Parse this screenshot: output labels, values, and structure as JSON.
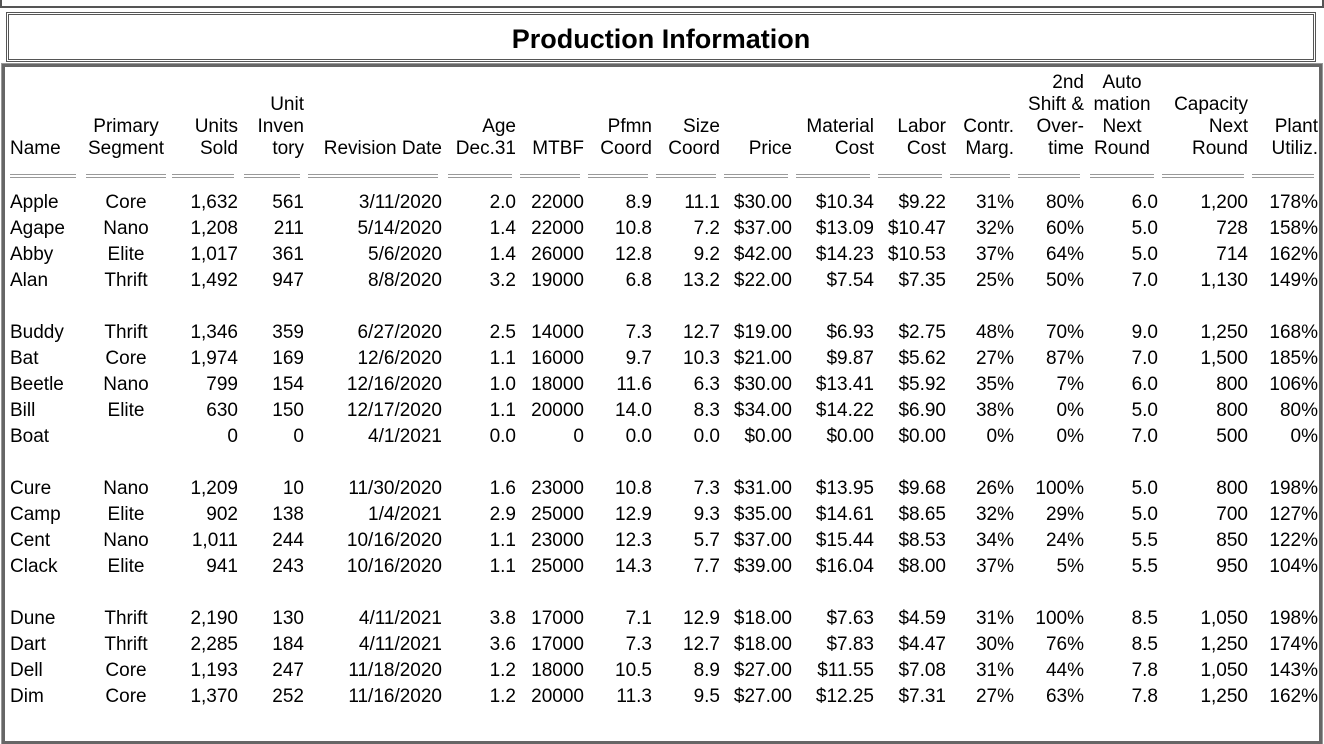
{
  "header": {
    "title": "Production Information"
  },
  "table": {
    "columns": [
      [
        "Name"
      ],
      [
        "Primary",
        "Segment"
      ],
      [
        "Units",
        "Sold"
      ],
      [
        "Unit",
        "Inven",
        "tory"
      ],
      [
        "Revision Date"
      ],
      [
        "Age",
        "Dec.31"
      ],
      [
        "MTBF"
      ],
      [
        "Pfmn",
        "Coord"
      ],
      [
        "Size",
        "Coord"
      ],
      [
        "Price"
      ],
      [
        "Material",
        "Cost"
      ],
      [
        "Labor",
        "Cost"
      ],
      [
        "Contr.",
        "Marg."
      ],
      [
        "2nd",
        "Shift &",
        "Over-",
        "time"
      ],
      [
        "Auto",
        "mation",
        "Next",
        "Round"
      ],
      [
        "Capacity",
        "Next",
        "Round"
      ],
      [
        "Plant",
        "Utiliz."
      ]
    ],
    "groups": [
      [
        [
          "Apple",
          "Core",
          "1,632",
          "561",
          "3/11/2020",
          "2.0",
          "22000",
          "8.9",
          "11.1",
          "$30.00",
          "$10.34",
          "$9.22",
          "31%",
          "80%",
          "6.0",
          "1,200",
          "178%"
        ],
        [
          "Agape",
          "Nano",
          "1,208",
          "211",
          "5/14/2020",
          "1.4",
          "22000",
          "10.8",
          "7.2",
          "$37.00",
          "$13.09",
          "$10.47",
          "32%",
          "60%",
          "5.0",
          "728",
          "158%"
        ],
        [
          "Abby",
          "Elite",
          "1,017",
          "361",
          "5/6/2020",
          "1.4",
          "26000",
          "12.8",
          "9.2",
          "$42.00",
          "$14.23",
          "$10.53",
          "37%",
          "64%",
          "5.0",
          "714",
          "162%"
        ],
        [
          "Alan",
          "Thrift",
          "1,492",
          "947",
          "8/8/2020",
          "3.2",
          "19000",
          "6.8",
          "13.2",
          "$22.00",
          "$7.54",
          "$7.35",
          "25%",
          "50%",
          "7.0",
          "1,130",
          "149%"
        ]
      ],
      [
        [
          "Buddy",
          "Thrift",
          "1,346",
          "359",
          "6/27/2020",
          "2.5",
          "14000",
          "7.3",
          "12.7",
          "$19.00",
          "$6.93",
          "$2.75",
          "48%",
          "70%",
          "9.0",
          "1,250",
          "168%"
        ],
        [
          "Bat",
          "Core",
          "1,974",
          "169",
          "12/6/2020",
          "1.1",
          "16000",
          "9.7",
          "10.3",
          "$21.00",
          "$9.87",
          "$5.62",
          "27%",
          "87%",
          "7.0",
          "1,500",
          "185%"
        ],
        [
          "Beetle",
          "Nano",
          "799",
          "154",
          "12/16/2020",
          "1.0",
          "18000",
          "11.6",
          "6.3",
          "$30.00",
          "$13.41",
          "$5.92",
          "35%",
          "7%",
          "6.0",
          "800",
          "106%"
        ],
        [
          "Bill",
          "Elite",
          "630",
          "150",
          "12/17/2020",
          "1.1",
          "20000",
          "14.0",
          "8.3",
          "$34.00",
          "$14.22",
          "$6.90",
          "38%",
          "0%",
          "5.0",
          "800",
          "80%"
        ],
        [
          "Boat",
          null,
          "0",
          "0",
          "4/1/2021",
          "0.0",
          "0",
          "0.0",
          "0.0",
          "$0.00",
          "$0.00",
          "$0.00",
          "0%",
          "0%",
          "7.0",
          "500",
          "0%"
        ]
      ],
      [
        [
          "Cure",
          "Nano",
          "1,209",
          "10",
          "11/30/2020",
          "1.6",
          "23000",
          "10.8",
          "7.3",
          "$31.00",
          "$13.95",
          "$9.68",
          "26%",
          "100%",
          "5.0",
          "800",
          "198%"
        ],
        [
          "Camp",
          "Elite",
          "902",
          "138",
          "1/4/2021",
          "2.9",
          "25000",
          "12.9",
          "9.3",
          "$35.00",
          "$14.61",
          "$8.65",
          "32%",
          "29%",
          "5.0",
          "700",
          "127%"
        ],
        [
          "Cent",
          "Nano",
          "1,011",
          "244",
          "10/16/2020",
          "1.1",
          "23000",
          "12.3",
          "5.7",
          "$37.00",
          "$15.44",
          "$8.53",
          "34%",
          "24%",
          "5.5",
          "850",
          "122%"
        ],
        [
          "Clack",
          "Elite",
          "941",
          "243",
          "10/16/2020",
          "1.1",
          "25000",
          "14.3",
          "7.7",
          "$39.00",
          "$16.04",
          "$8.00",
          "37%",
          "5%",
          "5.5",
          "950",
          "104%"
        ]
      ],
      [
        [
          "Dune",
          "Thrift",
          "2,190",
          "130",
          "4/11/2021",
          "3.8",
          "17000",
          "7.1",
          "12.9",
          "$18.00",
          "$7.63",
          "$4.59",
          "31%",
          "100%",
          "8.5",
          "1,050",
          "198%"
        ],
        [
          "Dart",
          "Thrift",
          "2,285",
          "184",
          "4/11/2021",
          "3.6",
          "17000",
          "7.3",
          "12.7",
          "$18.00",
          "$7.83",
          "$4.47",
          "30%",
          "76%",
          "8.5",
          "1,250",
          "174%"
        ],
        [
          "Dell",
          "Core",
          "1,193",
          "247",
          "11/18/2020",
          "1.2",
          "18000",
          "10.5",
          "8.9",
          "$27.00",
          "$11.55",
          "$7.08",
          "31%",
          "44%",
          "7.8",
          "1,050",
          "143%"
        ],
        [
          "Dim",
          "Core",
          "1,370",
          "252",
          "11/16/2020",
          "1.2",
          "20000",
          "11.3",
          "9.5",
          "$27.00",
          "$12.25",
          "$7.31",
          "27%",
          "63%",
          "7.8",
          "1,250",
          "162%"
        ]
      ]
    ]
  }
}
